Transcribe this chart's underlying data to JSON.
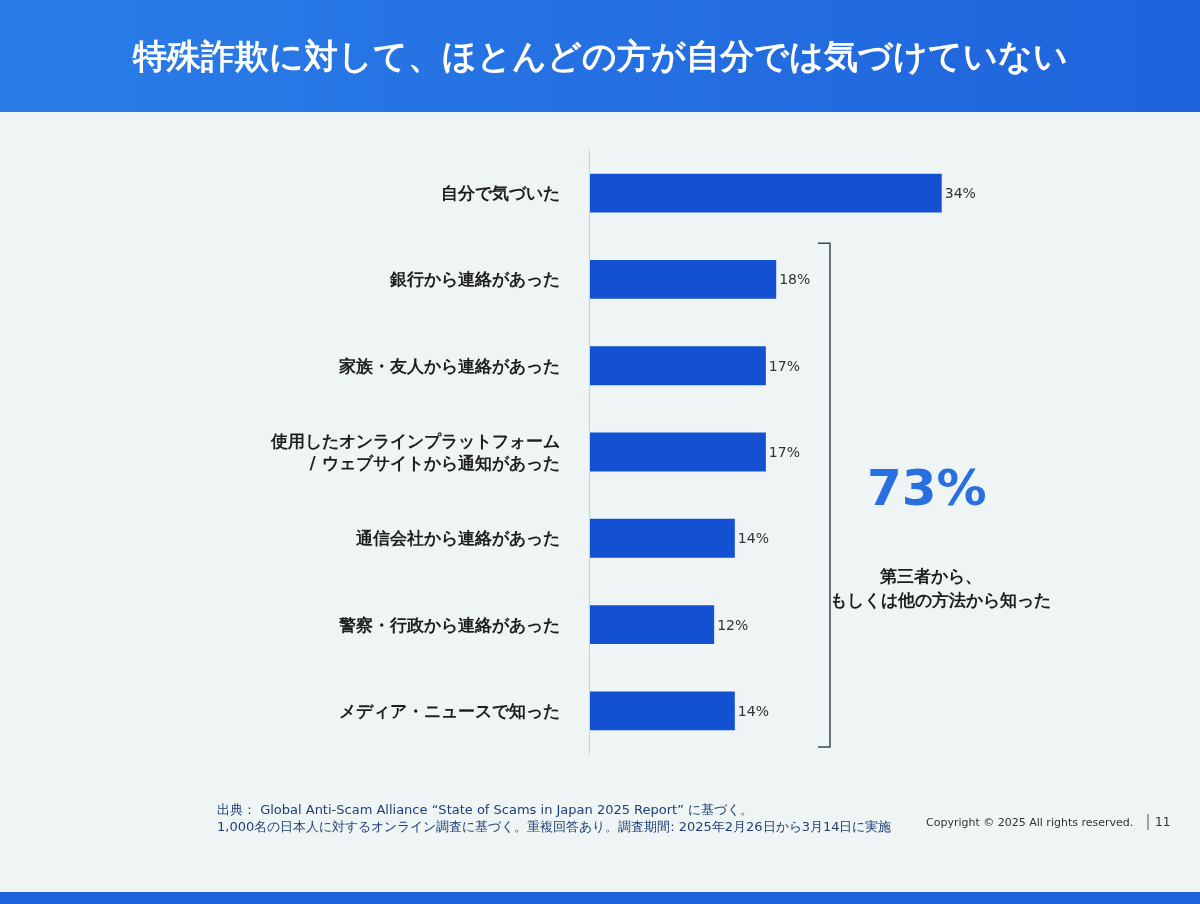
{
  "chart_data": {
    "type": "bar",
    "orientation": "horizontal",
    "title": "特殊詐欺に対して、ほとんどの方が自分では気づけていない",
    "categories": [
      "自分で気づいた",
      "銀行から連絡があった",
      "家族・友人から連絡があった",
      "使用したオンラインプラットフォーム\n/ ウェブサイトから通知があった",
      "通信会社から連絡があった",
      "警察・行政から連絡があった",
      "メディア・ニュースで知った"
    ],
    "values": [
      34,
      18,
      17,
      17,
      14,
      12,
      14
    ],
    "value_labels": [
      "34%",
      "18%",
      "17%",
      "17%",
      "14%",
      "12%",
      "14%"
    ],
    "color": "#1450d2",
    "annotations": [
      "73%",
      "第三者から、",
      "もしくは他の方法から知った",
      "出典： Global Anti-Scam Alliance “State of Scams in Japan 2025 Report” に基づく。\n1,000名の日本人に対するオンライン調査に基づく。重複回答あり。調査期間: 2025年2月26日から3月14日に実施",
      "Copyright © 2025 All rights reserved.",
      "11"
    ]
  }
}
